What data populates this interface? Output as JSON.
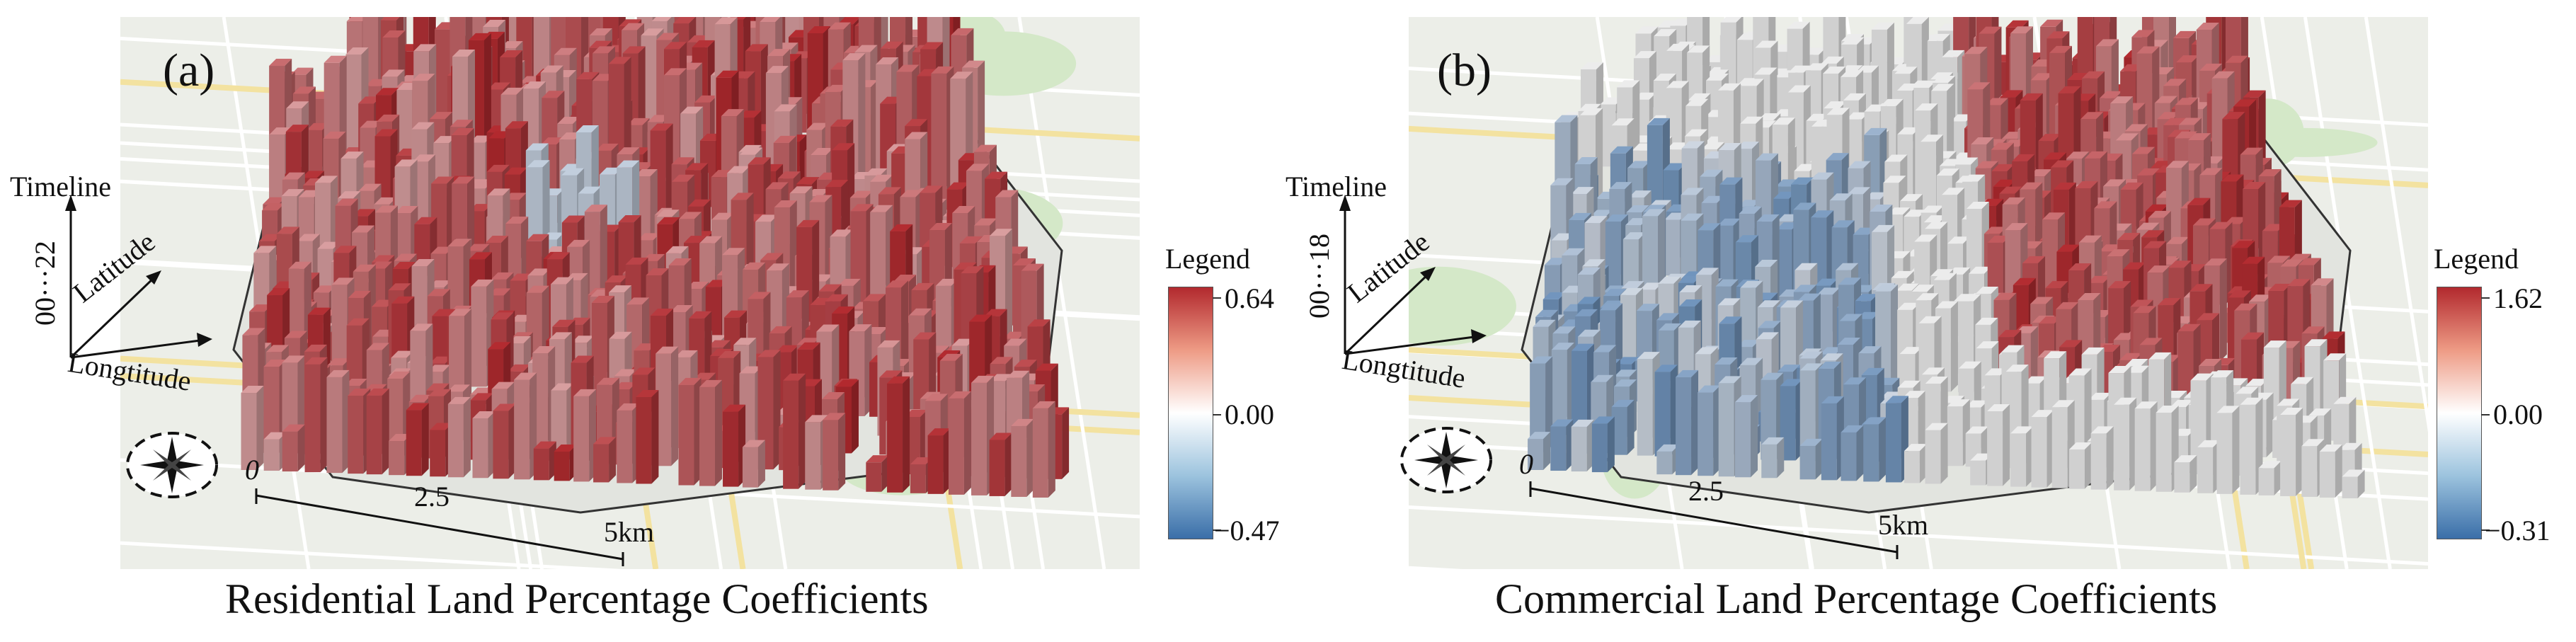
{
  "panels": [
    {
      "id": "a",
      "label": "(a)",
      "caption": "Residential Land Percentage Coefficients",
      "axes": {
        "time": "Timeline",
        "lat": "Latitude",
        "lon": "Longtitude",
        "time_range": "00···22"
      },
      "legend": {
        "title": "Legend",
        "max": "0.64",
        "mid": "0.00",
        "min": "−0.47",
        "colors": [
          "#b2292e",
          "#ee9b85",
          "#ffffff",
          "#9cc3de",
          "#3a6ea8"
        ]
      },
      "scale": {
        "zero": "0",
        "mid": "2.5",
        "end": "5km"
      },
      "pattern": "residential"
    },
    {
      "id": "b",
      "label": "(b)",
      "caption": "Commercial Land Percentage Coefficients",
      "axes": {
        "time": "Timeline",
        "lat": "Latitude",
        "lon": "Longtitude",
        "time_range": "00···18"
      },
      "legend": {
        "title": "Legend",
        "max": "1.62",
        "mid": "0.00",
        "min": "−0.31",
        "colors": [
          "#b2292e",
          "#ee9b85",
          "#ffffff",
          "#9cc3de",
          "#3a6ea8"
        ]
      },
      "scale": {
        "zero": "0",
        "mid": "2.5",
        "end": "5km"
      },
      "pattern": "commercial"
    }
  ],
  "icons": {
    "compass": "compass-rose-icon"
  }
}
